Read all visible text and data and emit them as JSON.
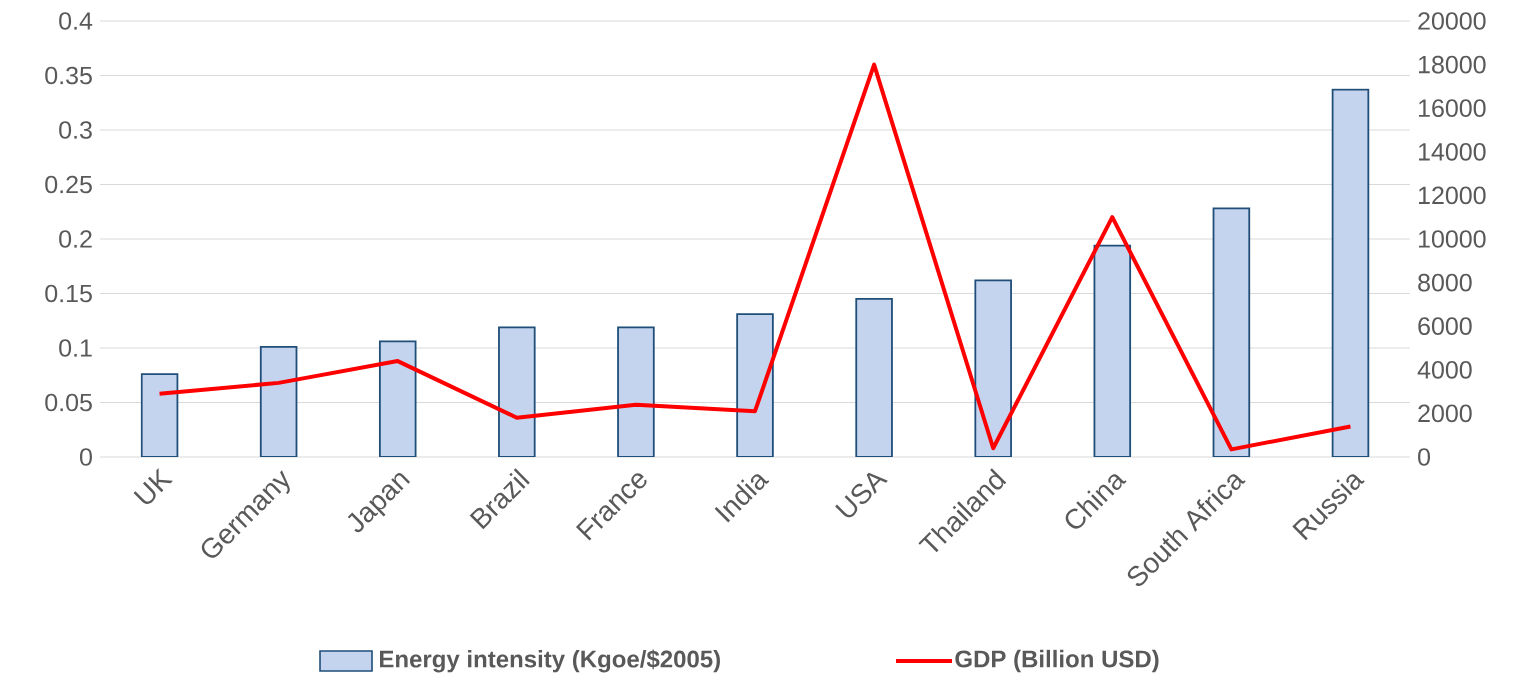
{
  "chart_data": {
    "type": "bar",
    "categories": [
      "UK",
      "Germany",
      "Japan",
      "Brazil",
      "France",
      "India",
      "USA",
      "Thailand",
      "China",
      "South Africa",
      "Russia"
    ],
    "series": [
      {
        "name": "Energy intensity (Kgoe/$2005)",
        "color": "#c5d4ee",
        "values": [
          0.076,
          0.101,
          0.106,
          0.119,
          0.119,
          0.131,
          0.145,
          0.162,
          0.194,
          0.228,
          0.337
        ]
      },
      {
        "name": "GDP (Billion USD)",
        "type": "line",
        "axis": "y2",
        "color": "#ff0000",
        "values": [
          2900,
          3400,
          4400,
          1800,
          2400,
          2100,
          18000,
          400,
          11000,
          350,
          1400
        ]
      }
    ],
    "ylim": [
      0,
      0.4
    ],
    "yticks": [
      0,
      0.05,
      0.1,
      0.15,
      0.2,
      0.25,
      0.3,
      0.35,
      0.4
    ],
    "y2lim": [
      0,
      20000
    ],
    "y2ticks": [
      0,
      2000,
      4000,
      6000,
      8000,
      10000,
      12000,
      14000,
      16000,
      18000,
      20000
    ],
    "grid": "y",
    "legend": "bottom",
    "marker": "none",
    "line_style": "solid"
  }
}
